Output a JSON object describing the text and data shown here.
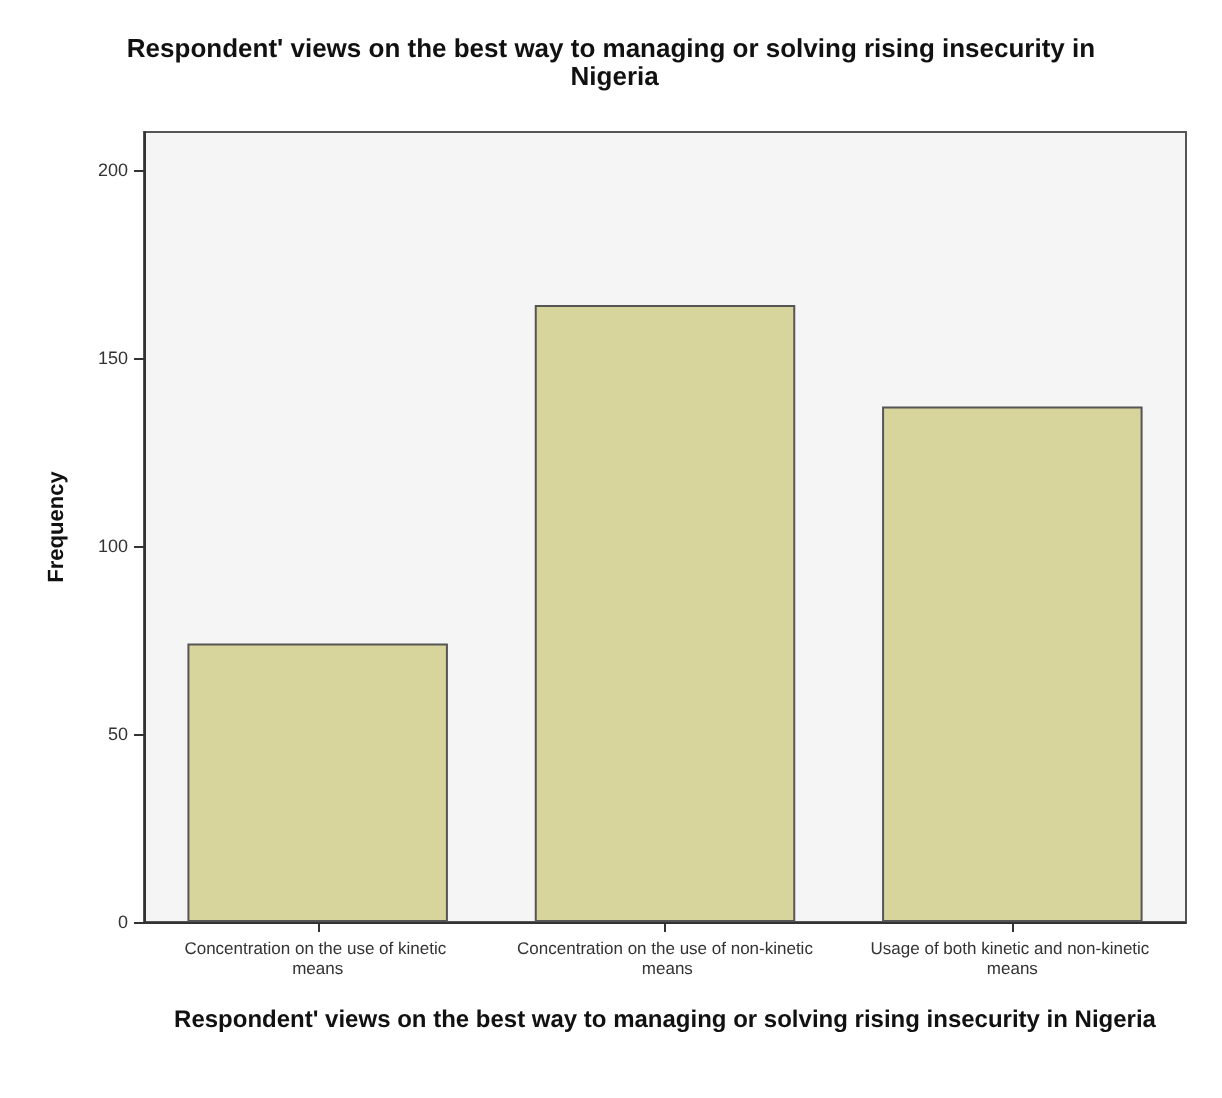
{
  "chart_data": {
    "type": "bar",
    "title": "Respondent' views on the best way to managing or solving rising insecurity in Nigeria",
    "xlabel": "Respondent' views on the best way to managing or solving rising insecurity in Nigeria",
    "ylabel": "Frequency",
    "categories": [
      "Concentration on the use of kinetic means",
      "Concentration on the use of non-kinetic means",
      "Usage of both kinetic and non-kinetic means"
    ],
    "values": [
      74,
      164,
      137
    ],
    "color": "#d8d59c",
    "ylim": [
      0,
      210
    ],
    "yticks": [
      0,
      50,
      100,
      150,
      200
    ],
    "grid": false
  }
}
